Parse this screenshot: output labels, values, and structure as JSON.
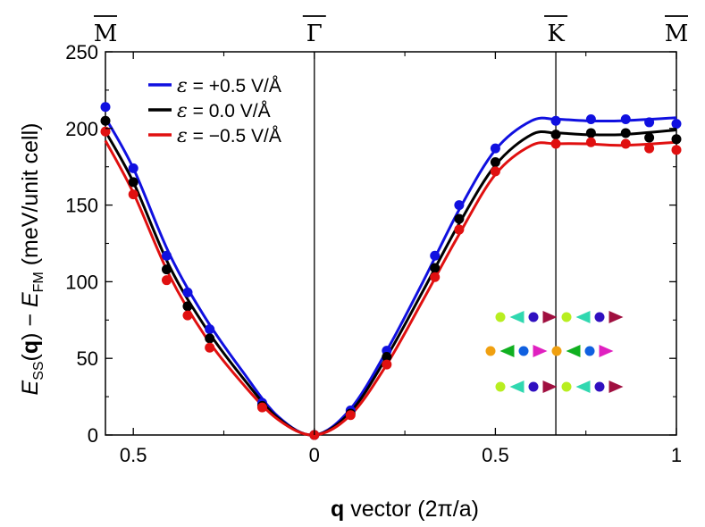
{
  "chart_data": {
    "type": "line",
    "xlabel_bold": "q",
    "xlabel_rest": " vector (2π/a)",
    "ylabel": {
      "e1": "E",
      "s1": "SS",
      "mid": "(",
      "q": "q",
      "mid2": ") − ",
      "e2": "E",
      "s2": "FM",
      "unit": " (meV/unit cell)"
    },
    "ylim": [
      0,
      250
    ],
    "y_ticks": [
      0,
      50,
      100,
      150,
      200,
      250
    ],
    "x_ticks": [
      {
        "pos": -0.5,
        "label": "0.5"
      },
      {
        "pos": 0,
        "label": "0"
      },
      {
        "pos": 0.5,
        "label": "0.5"
      },
      {
        "pos": 1,
        "label": "1"
      }
    ],
    "x_range": [
      -0.577,
      1.0
    ],
    "symmetry_points": [
      {
        "pos": -0.577,
        "label": "M"
      },
      {
        "pos": 0,
        "label": "Γ"
      },
      {
        "pos": 0.667,
        "label": "K"
      },
      {
        "pos": 1.0,
        "label": "M"
      }
    ],
    "vlines": [
      0,
      0.667
    ],
    "legend_position": "top-left",
    "series": [
      {
        "name": "ε = +0.5 V/Å",
        "legend_eps": "ε",
        "legend_rest": " = +0.5 V/Å",
        "color": "#1010e0",
        "points": [
          [
            -0.577,
            214
          ],
          [
            -0.5,
            174
          ],
          [
            -0.408,
            117
          ],
          [
            -0.35,
            93
          ],
          [
            -0.289,
            69
          ],
          [
            -0.144,
            21
          ],
          [
            0,
            0
          ],
          [
            0.1,
            16
          ],
          [
            0.2,
            55
          ],
          [
            0.333,
            117
          ],
          [
            0.4,
            150
          ],
          [
            0.5,
            187
          ],
          [
            0.667,
            205
          ],
          [
            0.764,
            206
          ],
          [
            0.86,
            206
          ],
          [
            0.925,
            204
          ],
          [
            1.0,
            203
          ]
        ],
        "curve": [
          [
            -0.577,
            207
          ],
          [
            -0.5,
            174
          ],
          [
            -0.4,
            118
          ],
          [
            -0.3,
            76
          ],
          [
            -0.2,
            42
          ],
          [
            -0.1,
            12
          ],
          [
            0,
            0
          ],
          [
            0.1,
            17
          ],
          [
            0.2,
            55
          ],
          [
            0.3,
            100
          ],
          [
            0.4,
            147
          ],
          [
            0.5,
            186
          ],
          [
            0.6,
            205
          ],
          [
            0.667,
            206
          ],
          [
            0.75,
            205
          ],
          [
            0.85,
            205
          ],
          [
            1.0,
            207
          ]
        ]
      },
      {
        "name": "ε = 0.0 V/Å",
        "legend_eps": "ε",
        "legend_rest": " = 0.0 V/Å",
        "color": "#000000",
        "points": [
          [
            -0.577,
            205
          ],
          [
            -0.5,
            165
          ],
          [
            -0.408,
            108
          ],
          [
            -0.35,
            84
          ],
          [
            -0.289,
            63
          ],
          [
            -0.144,
            19
          ],
          [
            0,
            0
          ],
          [
            0.1,
            14
          ],
          [
            0.2,
            51
          ],
          [
            0.333,
            109
          ],
          [
            0.4,
            141
          ],
          [
            0.5,
            178
          ],
          [
            0.667,
            196
          ],
          [
            0.764,
            197
          ],
          [
            0.86,
            197
          ],
          [
            0.925,
            194
          ],
          [
            1.0,
            193
          ]
        ],
        "curve": [
          [
            -0.577,
            198
          ],
          [
            -0.5,
            165
          ],
          [
            -0.4,
            110
          ],
          [
            -0.3,
            70
          ],
          [
            -0.2,
            38
          ],
          [
            -0.1,
            11
          ],
          [
            0,
            0
          ],
          [
            0.1,
            15
          ],
          [
            0.2,
            51
          ],
          [
            0.3,
            94
          ],
          [
            0.4,
            138
          ],
          [
            0.5,
            176
          ],
          [
            0.6,
            196
          ],
          [
            0.667,
            197
          ],
          [
            0.75,
            196
          ],
          [
            0.85,
            196
          ],
          [
            1.0,
            199
          ]
        ]
      },
      {
        "name": "ε = −0.5 V/Å",
        "legend_eps": "ε",
        "legend_rest": " = −0.5 V/Å",
        "color": "#e01010",
        "points": [
          [
            -0.577,
            198
          ],
          [
            -0.5,
            157
          ],
          [
            -0.408,
            101
          ],
          [
            -0.35,
            78
          ],
          [
            -0.289,
            57
          ],
          [
            -0.144,
            18
          ],
          [
            0,
            0
          ],
          [
            0.1,
            13
          ],
          [
            0.2,
            46
          ],
          [
            0.333,
            103
          ],
          [
            0.4,
            134
          ],
          [
            0.5,
            172
          ],
          [
            0.667,
            190
          ],
          [
            0.764,
            191
          ],
          [
            0.86,
            190
          ],
          [
            0.925,
            187
          ],
          [
            1.0,
            186
          ]
        ],
        "curve": [
          [
            -0.577,
            192
          ],
          [
            -0.5,
            158
          ],
          [
            -0.4,
            104
          ],
          [
            -0.3,
            64
          ],
          [
            -0.2,
            34
          ],
          [
            -0.1,
            10
          ],
          [
            0,
            0
          ],
          [
            0.1,
            13
          ],
          [
            0.2,
            46
          ],
          [
            0.3,
            88
          ],
          [
            0.4,
            131
          ],
          [
            0.5,
            170
          ],
          [
            0.6,
            189
          ],
          [
            0.667,
            190
          ],
          [
            0.75,
            190
          ],
          [
            0.85,
            189
          ],
          [
            1.0,
            191
          ]
        ]
      }
    ],
    "inset_rows": [
      {
        "y": 355,
        "items": [
          [
            "circle",
            "#b8ee20"
          ],
          [
            "tri-left",
            "#30d8b0"
          ],
          [
            "circle",
            "#3010c0"
          ],
          [
            "tri-right",
            "#a01040"
          ],
          [
            "circle",
            "#b8ee20"
          ],
          [
            "tri-left",
            "#30d8b0"
          ],
          [
            "circle",
            "#3010c0"
          ],
          [
            "tri-right",
            "#a01040"
          ]
        ]
      },
      {
        "y": 393,
        "items": [
          [
            "circle",
            "#f0a010"
          ],
          [
            "tri-left",
            "#10b020"
          ],
          [
            "circle",
            "#1060e0"
          ],
          [
            "tri-right",
            "#e020c0"
          ],
          [
            "circle",
            "#f0a010"
          ],
          [
            "tri-left",
            "#10b020"
          ],
          [
            "circle",
            "#1060e0"
          ],
          [
            "tri-right",
            "#e020c0"
          ]
        ]
      },
      {
        "y": 433,
        "items": [
          [
            "circle",
            "#b8ee20"
          ],
          [
            "tri-left",
            "#30d8b0"
          ],
          [
            "circle",
            "#3010c0"
          ],
          [
            "tri-right",
            "#a01040"
          ],
          [
            "circle",
            "#b8ee20"
          ],
          [
            "tri-left",
            "#30d8b0"
          ],
          [
            "circle",
            "#3010c0"
          ],
          [
            "tri-right",
            "#a01040"
          ]
        ]
      }
    ]
  }
}
